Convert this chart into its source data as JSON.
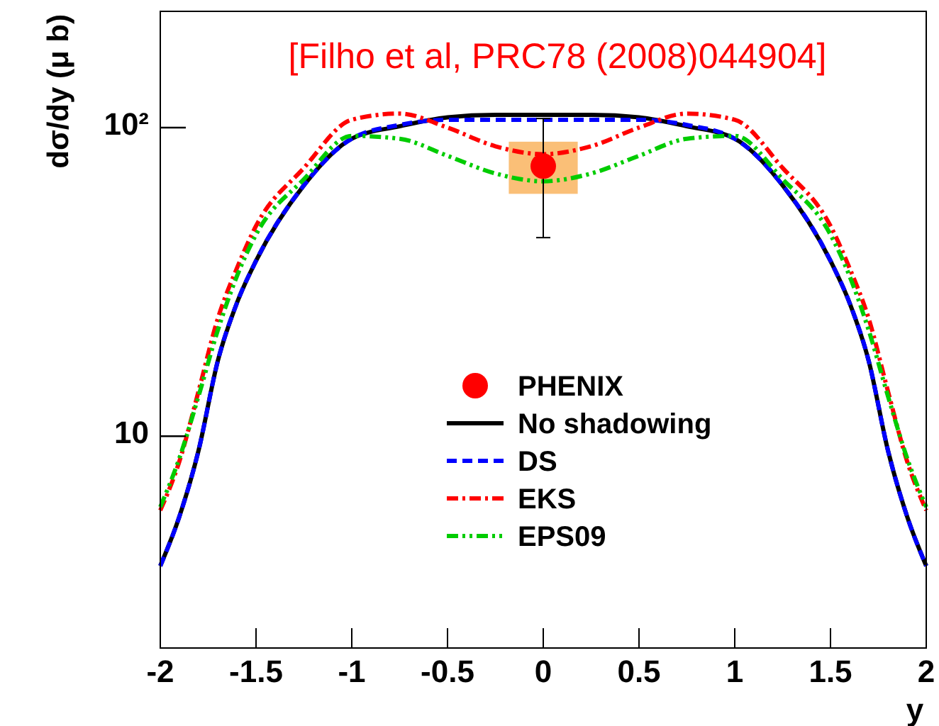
{
  "chart_data": {
    "type": "line",
    "title": "[Filho et al, PRC78 (2008)044904]",
    "xlabel": "y",
    "ylabel": "dσ/dy (μ b)",
    "log": "y",
    "xlim": [
      -2,
      2
    ],
    "ylim": [
      2.06,
      238
    ],
    "xticks": [
      -2,
      -1.5,
      -1,
      -0.5,
      0,
      0.5,
      1,
      1.5,
      2
    ],
    "yticks": [
      10,
      {
        "value": 100,
        "label": "10²"
      }
    ],
    "x": [
      -2,
      -1.9,
      -1.8,
      -1.7,
      -1.6,
      -1.5,
      -1.25,
      -1,
      -0.75,
      -0.5,
      -0.25,
      0,
      0.25,
      0.5,
      0.75,
      1,
      1.25,
      1.5,
      1.6,
      1.7,
      1.8,
      1.9,
      2
    ],
    "grid": false,
    "legend": "center",
    "series": [
      {
        "name": "PHENIX",
        "type": "scatter",
        "marker": "circle",
        "color": "#ff0000",
        "x": [
          0
        ],
        "values": [
          75
        ],
        "errors": [
          [
            44,
            107
          ]
        ]
      },
      {
        "name": "No shadowing",
        "color": "#000000",
        "line_style": "solid",
        "values": [
          3.8,
          5.5,
          9,
          17.5,
          27,
          37,
          65,
          92,
          101,
          108,
          110,
          110,
          110,
          108,
          101,
          92,
          65,
          37,
          27,
          17.5,
          9,
          5.5,
          3.8
        ]
      },
      {
        "name": "DS",
        "color": "#0000ff",
        "line_style": "dashed",
        "values": [
          3.8,
          5.5,
          9,
          17.5,
          27,
          37,
          65,
          92,
          102,
          106,
          106,
          106,
          106,
          106,
          102,
          92,
          65,
          37,
          27,
          17.5,
          9,
          5.5,
          3.8
        ]
      },
      {
        "name": "EKS",
        "color": "#ff0000",
        "line_style": "dashdot",
        "values": [
          5.75,
          8.3,
          14,
          24,
          35,
          48,
          74,
          106,
          111,
          100,
          87,
          82,
          87,
          100,
          111,
          106,
          74,
          48,
          35,
          24,
          14,
          8.3,
          5.75
        ]
      },
      {
        "name": "EPS09",
        "color": "#00cc00",
        "line_style": "dashdotdot",
        "values": [
          5.9,
          8.5,
          13.5,
          22,
          33,
          45,
          68,
          94,
          92,
          81,
          71,
          67,
          71,
          81,
          92,
          94,
          68,
          45,
          33,
          22,
          13.5,
          8.5,
          5.9
        ]
      },
      {
        "type": "bar",
        "color": "#f9b45f",
        "x": [
          0
        ],
        "base": [
          61
        ],
        "values": [
          29
        ]
      }
    ]
  }
}
